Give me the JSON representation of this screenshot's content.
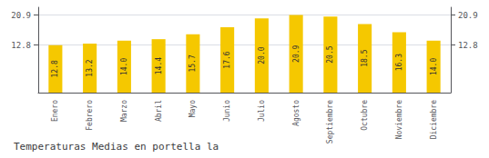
{
  "chart_data": {
    "type": "bar",
    "title": "Temperaturas Medias en portella la",
    "categories": [
      "Enero",
      "Febrero",
      "Marzo",
      "Abril",
      "Mayo",
      "Junio",
      "Julio",
      "Agosto",
      "Septiembre",
      "Octubre",
      "Noviembre",
      "Diciembre"
    ],
    "values": [
      12.8,
      13.2,
      14.0,
      14.4,
      15.7,
      17.6,
      20.0,
      20.9,
      20.5,
      18.5,
      16.3,
      14.0
    ],
    "value_labels": [
      "12.8",
      "13.2",
      "14.0",
      "14.4",
      "15.7",
      "17.6",
      "20.0",
      "20.9",
      "20.5",
      "18.5",
      "16.3",
      "14.0"
    ],
    "data_labels": true,
    "color": "#F5C800",
    "ylim": [
      0,
      23.0
    ],
    "yticks": [
      12.8,
      20.9
    ],
    "grid": true
  }
}
